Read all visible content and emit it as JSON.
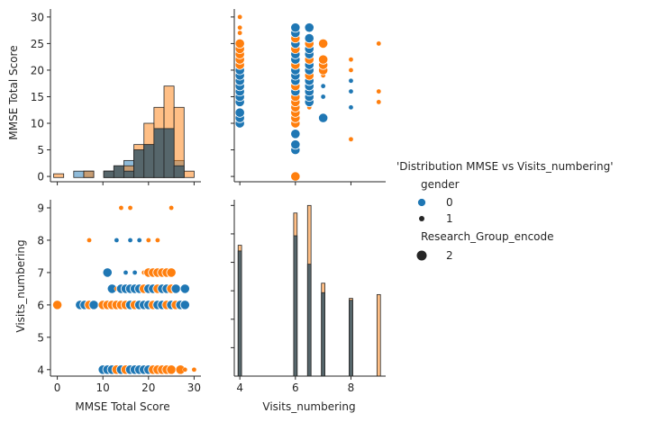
{
  "legend": {
    "title": "'Distribution MMSE vs Visits_numbering'",
    "hue_title": "gender",
    "hue_items": [
      {
        "label": "0",
        "color": "#1f77b4"
      },
      {
        "label": "1",
        "color": "#1f77b4"
      }
    ],
    "size_title": "Research_Group_encode",
    "size_items": [
      {
        "label": "2"
      }
    ]
  },
  "chart_data": [
    {
      "panel": "mmse-hist",
      "type": "bar",
      "xlabel": "",
      "ylabel": "MMSE Total Score",
      "xlim": [
        -1.5,
        31.5
      ],
      "ylim": [
        -1,
        31.5
      ],
      "yticks": [
        0,
        5,
        10,
        15,
        20,
        25,
        30
      ],
      "bin_edges": [
        -0.8,
        1.4,
        3.6,
        5.8,
        8.0,
        10.2,
        12.4,
        14.6,
        16.8,
        19.0,
        21.2,
        23.4,
        25.6,
        27.8,
        30.0
      ],
      "series": [
        {
          "name": "0",
          "color": "#1f77b4",
          "counts": [
            0,
            0,
            1,
            1,
            0,
            1,
            2,
            3,
            5,
            6,
            9,
            9,
            3,
            0
          ]
        },
        {
          "name": "1",
          "color": "#ff7f0e",
          "counts": [
            0.5,
            0,
            0,
            1,
            0,
            1,
            1,
            2,
            6,
            10,
            13,
            17,
            13,
            1
          ]
        },
        {
          "name": "",
          "color": "#56666b",
          "counts": [
            0,
            0,
            0,
            0,
            0,
            1,
            2,
            1,
            5,
            6,
            9,
            9,
            2,
            0
          ]
        }
      ]
    },
    {
      "panel": "visits-vs-mmse-scatter",
      "type": "scatter",
      "xlim": [
        3.8,
        9.25
      ],
      "ylim": [
        -1,
        31.5
      ],
      "points": [
        {
          "x": 4,
          "y": 10,
          "c": 0,
          "s": 2
        },
        {
          "x": 4,
          "y": 11,
          "c": 0,
          "s": 2
        },
        {
          "x": 4,
          "y": 12,
          "c": 0,
          "s": 2
        },
        {
          "x": 4,
          "y": 14,
          "c": 0,
          "s": 2
        },
        {
          "x": 4,
          "y": 15,
          "c": 0,
          "s": 2
        },
        {
          "x": 4,
          "y": 16,
          "c": 0,
          "s": 2
        },
        {
          "x": 4,
          "y": 17,
          "c": 0,
          "s": 2
        },
        {
          "x": 4,
          "y": 18,
          "c": 0,
          "s": 2
        },
        {
          "x": 4,
          "y": 19,
          "c": 0,
          "s": 2
        },
        {
          "x": 4,
          "y": 20,
          "c": 0,
          "s": 2
        },
        {
          "x": 4,
          "y": 21,
          "c": 1,
          "s": 2
        },
        {
          "x": 4,
          "y": 22,
          "c": 1,
          "s": 2
        },
        {
          "x": 4,
          "y": 23,
          "c": 1,
          "s": 2
        },
        {
          "x": 4,
          "y": 24,
          "c": 1,
          "s": 2
        },
        {
          "x": 4,
          "y": 25,
          "c": 1,
          "s": 2
        },
        {
          "x": 4,
          "y": 27,
          "c": 1,
          "s": 1
        },
        {
          "x": 4,
          "y": 28,
          "c": 1,
          "s": 1
        },
        {
          "x": 4,
          "y": 30,
          "c": 1,
          "s": 1
        },
        {
          "x": 6,
          "y": 0,
          "c": 1,
          "s": 2
        },
        {
          "x": 6,
          "y": 5,
          "c": 0,
          "s": 2
        },
        {
          "x": 6,
          "y": 6,
          "c": 0,
          "s": 2
        },
        {
          "x": 6,
          "y": 8,
          "c": 0,
          "s": 2
        },
        {
          "x": 6,
          "y": 10,
          "c": 1,
          "s": 2
        },
        {
          "x": 6,
          "y": 11,
          "c": 1,
          "s": 2
        },
        {
          "x": 6,
          "y": 12,
          "c": 1,
          "s": 2
        },
        {
          "x": 6,
          "y": 13,
          "c": 1,
          "s": 2
        },
        {
          "x": 6,
          "y": 14,
          "c": 1,
          "s": 2
        },
        {
          "x": 6,
          "y": 15,
          "c": 1,
          "s": 2
        },
        {
          "x": 6,
          "y": 16,
          "c": 0,
          "s": 2
        },
        {
          "x": 6,
          "y": 17,
          "c": 1,
          "s": 2
        },
        {
          "x": 6,
          "y": 18,
          "c": 0,
          "s": 2
        },
        {
          "x": 6,
          "y": 19,
          "c": 0,
          "s": 2
        },
        {
          "x": 6,
          "y": 20,
          "c": 0,
          "s": 2
        },
        {
          "x": 6,
          "y": 21,
          "c": 1,
          "s": 2
        },
        {
          "x": 6,
          "y": 22,
          "c": 0,
          "s": 2
        },
        {
          "x": 6,
          "y": 23,
          "c": 0,
          "s": 2
        },
        {
          "x": 6,
          "y": 24,
          "c": 1,
          "s": 2
        },
        {
          "x": 6,
          "y": 25,
          "c": 0,
          "s": 2
        },
        {
          "x": 6,
          "y": 26,
          "c": 1,
          "s": 2
        },
        {
          "x": 6,
          "y": 27,
          "c": 0,
          "s": 2
        },
        {
          "x": 6,
          "y": 28,
          "c": 0,
          "s": 2
        },
        {
          "x": 6.5,
          "y": 13,
          "c": 1,
          "s": 1
        },
        {
          "x": 6.5,
          "y": 14,
          "c": 0,
          "s": 2
        },
        {
          "x": 6.5,
          "y": 15,
          "c": 0,
          "s": 2
        },
        {
          "x": 6.5,
          "y": 16,
          "c": 0,
          "s": 2
        },
        {
          "x": 6.5,
          "y": 17,
          "c": 0,
          "s": 2
        },
        {
          "x": 6.5,
          "y": 18,
          "c": 0,
          "s": 2
        },
        {
          "x": 6.5,
          "y": 19,
          "c": 1,
          "s": 2
        },
        {
          "x": 6.5,
          "y": 20,
          "c": 0,
          "s": 2
        },
        {
          "x": 6.5,
          "y": 21,
          "c": 0,
          "s": 2
        },
        {
          "x": 6.5,
          "y": 22,
          "c": 1,
          "s": 2
        },
        {
          "x": 6.5,
          "y": 23,
          "c": 0,
          "s": 2
        },
        {
          "x": 6.5,
          "y": 24,
          "c": 0,
          "s": 2
        },
        {
          "x": 6.5,
          "y": 25,
          "c": 1,
          "s": 2
        },
        {
          "x": 6.5,
          "y": 26,
          "c": 0,
          "s": 2
        },
        {
          "x": 6.5,
          "y": 28,
          "c": 0,
          "s": 2
        },
        {
          "x": 7,
          "y": 11,
          "c": 0,
          "s": 2
        },
        {
          "x": 7,
          "y": 15,
          "c": 0,
          "s": 1
        },
        {
          "x": 7,
          "y": 17,
          "c": 0,
          "s": 1
        },
        {
          "x": 7,
          "y": 19,
          "c": 1,
          "s": 1
        },
        {
          "x": 7,
          "y": 20,
          "c": 1,
          "s": 2
        },
        {
          "x": 7,
          "y": 21,
          "c": 1,
          "s": 2
        },
        {
          "x": 7,
          "y": 22,
          "c": 1,
          "s": 2
        },
        {
          "x": 7,
          "y": 25,
          "c": 1,
          "s": 2
        },
        {
          "x": 8,
          "y": 7,
          "c": 1,
          "s": 1
        },
        {
          "x": 8,
          "y": 13,
          "c": 0,
          "s": 1
        },
        {
          "x": 8,
          "y": 16,
          "c": 0,
          "s": 1
        },
        {
          "x": 8,
          "y": 18,
          "c": 0,
          "s": 1
        },
        {
          "x": 8,
          "y": 20,
          "c": 1,
          "s": 1
        },
        {
          "x": 8,
          "y": 22,
          "c": 1,
          "s": 1
        },
        {
          "x": 9,
          "y": 14,
          "c": 1,
          "s": 1
        },
        {
          "x": 9,
          "y": 16,
          "c": 1,
          "s": 1
        },
        {
          "x": 9,
          "y": 25,
          "c": 1,
          "s": 1
        }
      ]
    },
    {
      "panel": "mmse-vs-visits-scatter",
      "type": "scatter",
      "xlabel": "MMSE Total Score",
      "ylabel": "Visits_numbering",
      "xlim": [
        -1.5,
        31.5
      ],
      "ylim": [
        3.8,
        9.25
      ],
      "xticks": [
        0,
        10,
        20,
        30
      ],
      "yticks": [
        4,
        5,
        6,
        7,
        8,
        9
      ],
      "points": [
        {
          "x": 0,
          "y": 6,
          "c": 1,
          "s": 2
        },
        {
          "x": 5,
          "y": 6,
          "c": 0,
          "s": 2
        },
        {
          "x": 6,
          "y": 6,
          "c": 0,
          "s": 2
        },
        {
          "x": 7,
          "y": 6,
          "c": 1,
          "s": 2
        },
        {
          "x": 8,
          "y": 6,
          "c": 0,
          "s": 2
        },
        {
          "x": 10,
          "y": 6,
          "c": 1,
          "s": 2
        },
        {
          "x": 11,
          "y": 6,
          "c": 1,
          "s": 2
        },
        {
          "x": 12,
          "y": 6,
          "c": 1,
          "s": 2
        },
        {
          "x": 13,
          "y": 6,
          "c": 1,
          "s": 2
        },
        {
          "x": 14,
          "y": 6,
          "c": 1,
          "s": 2
        },
        {
          "x": 15,
          "y": 6,
          "c": 1,
          "s": 2
        },
        {
          "x": 16,
          "y": 6,
          "c": 0,
          "s": 2
        },
        {
          "x": 17,
          "y": 6,
          "c": 1,
          "s": 2
        },
        {
          "x": 18,
          "y": 6,
          "c": 0,
          "s": 2
        },
        {
          "x": 19,
          "y": 6,
          "c": 0,
          "s": 2
        },
        {
          "x": 20,
          "y": 6,
          "c": 0,
          "s": 2
        },
        {
          "x": 21,
          "y": 6,
          "c": 1,
          "s": 2
        },
        {
          "x": 22,
          "y": 6,
          "c": 0,
          "s": 2
        },
        {
          "x": 23,
          "y": 6,
          "c": 0,
          "s": 2
        },
        {
          "x": 24,
          "y": 6,
          "c": 1,
          "s": 2
        },
        {
          "x": 25,
          "y": 6,
          "c": 0,
          "s": 2
        },
        {
          "x": 26,
          "y": 6,
          "c": 1,
          "s": 2
        },
        {
          "x": 27,
          "y": 6,
          "c": 0,
          "s": 2
        },
        {
          "x": 28,
          "y": 6,
          "c": 0,
          "s": 2
        },
        {
          "x": 11,
          "y": 7,
          "c": 0,
          "s": 2
        },
        {
          "x": 15,
          "y": 7,
          "c": 0,
          "s": 1
        },
        {
          "x": 17,
          "y": 7,
          "c": 0,
          "s": 1
        },
        {
          "x": 19,
          "y": 7,
          "c": 1,
          "s": 1
        },
        {
          "x": 20,
          "y": 7,
          "c": 1,
          "s": 2
        },
        {
          "x": 21,
          "y": 7,
          "c": 1,
          "s": 2
        },
        {
          "x": 22,
          "y": 7,
          "c": 1,
          "s": 2
        },
        {
          "x": 23,
          "y": 7,
          "c": 1,
          "s": 2
        },
        {
          "x": 24,
          "y": 7,
          "c": 1,
          "s": 2
        },
        {
          "x": 25,
          "y": 7,
          "c": 1,
          "s": 2
        },
        {
          "x": 12,
          "y": 6.5,
          "c": 0,
          "s": 2
        },
        {
          "x": 13,
          "y": 6.5,
          "c": 1,
          "s": 1
        },
        {
          "x": 14,
          "y": 6.5,
          "c": 0,
          "s": 2
        },
        {
          "x": 15,
          "y": 6.5,
          "c": 0,
          "s": 2
        },
        {
          "x": 16,
          "y": 6.5,
          "c": 0,
          "s": 2
        },
        {
          "x": 17,
          "y": 6.5,
          "c": 0,
          "s": 2
        },
        {
          "x": 18,
          "y": 6.5,
          "c": 0,
          "s": 2
        },
        {
          "x": 19,
          "y": 6.5,
          "c": 1,
          "s": 2
        },
        {
          "x": 20,
          "y": 6.5,
          "c": 0,
          "s": 2
        },
        {
          "x": 21,
          "y": 6.5,
          "c": 0,
          "s": 2
        },
        {
          "x": 22,
          "y": 6.5,
          "c": 1,
          "s": 2
        },
        {
          "x": 23,
          "y": 6.5,
          "c": 0,
          "s": 2
        },
        {
          "x": 24,
          "y": 6.5,
          "c": 0,
          "s": 2
        },
        {
          "x": 25,
          "y": 6.5,
          "c": 1,
          "s": 2
        },
        {
          "x": 26,
          "y": 6.5,
          "c": 0,
          "s": 2
        },
        {
          "x": 28,
          "y": 6.5,
          "c": 0,
          "s": 2
        },
        {
          "x": 7,
          "y": 8,
          "c": 1,
          "s": 1
        },
        {
          "x": 13,
          "y": 8,
          "c": 0,
          "s": 1
        },
        {
          "x": 16,
          "y": 8,
          "c": 0,
          "s": 1
        },
        {
          "x": 18,
          "y": 8,
          "c": 0,
          "s": 1
        },
        {
          "x": 20,
          "y": 8,
          "c": 1,
          "s": 1
        },
        {
          "x": 22,
          "y": 8,
          "c": 1,
          "s": 1
        },
        {
          "x": 14,
          "y": 9,
          "c": 1,
          "s": 1
        },
        {
          "x": 16,
          "y": 9,
          "c": 1,
          "s": 1
        },
        {
          "x": 25,
          "y": 9,
          "c": 1,
          "s": 1
        },
        {
          "x": 10,
          "y": 4,
          "c": 0,
          "s": 2
        },
        {
          "x": 11,
          "y": 4,
          "c": 0,
          "s": 2
        },
        {
          "x": 12,
          "y": 4,
          "c": 0,
          "s": 2
        },
        {
          "x": 13,
          "y": 4,
          "c": 1,
          "s": 2
        },
        {
          "x": 14,
          "y": 4,
          "c": 0,
          "s": 2
        },
        {
          "x": 15,
          "y": 4,
          "c": 1,
          "s": 2
        },
        {
          "x": 16,
          "y": 4,
          "c": 0,
          "s": 2
        },
        {
          "x": 17,
          "y": 4,
          "c": 0,
          "s": 2
        },
        {
          "x": 18,
          "y": 4,
          "c": 0,
          "s": 2
        },
        {
          "x": 19,
          "y": 4,
          "c": 0,
          "s": 2
        },
        {
          "x": 20,
          "y": 4,
          "c": 0,
          "s": 2
        },
        {
          "x": 21,
          "y": 4,
          "c": 1,
          "s": 2
        },
        {
          "x": 22,
          "y": 4,
          "c": 1,
          "s": 2
        },
        {
          "x": 23,
          "y": 4,
          "c": 1,
          "s": 2
        },
        {
          "x": 24,
          "y": 4,
          "c": 1,
          "s": 2
        },
        {
          "x": 25,
          "y": 4,
          "c": 1,
          "s": 2
        },
        {
          "x": 27,
          "y": 4,
          "c": 1,
          "s": 2
        },
        {
          "x": 28,
          "y": 4,
          "c": 1,
          "s": 1
        },
        {
          "x": 30,
          "y": 4,
          "c": 1,
          "s": 1
        }
      ]
    },
    {
      "panel": "visits-hist",
      "type": "bar",
      "xlabel": "Visits_numbering",
      "xlim": [
        3.8,
        9.25
      ],
      "xticks": [
        4,
        6,
        8
      ],
      "ylim": [
        0,
        9.3
      ],
      "bar_width": 0.125,
      "series": [
        {
          "name": "1",
          "color": "#ff7f0e",
          "x": [
            4.0,
            6.0,
            6.5,
            7.0,
            8.0,
            9.0
          ],
          "counts": [
            6.9,
            8.6,
            9.0,
            4.9,
            4.1,
            4.3
          ]
        },
        {
          "name": "0",
          "color": "#1f77b4",
          "x": [
            4.0,
            6.0,
            6.5,
            7.0,
            8.0
          ],
          "counts": [
            6.6,
            7.4,
            5.9,
            4.4,
            4.0
          ]
        }
      ]
    }
  ]
}
